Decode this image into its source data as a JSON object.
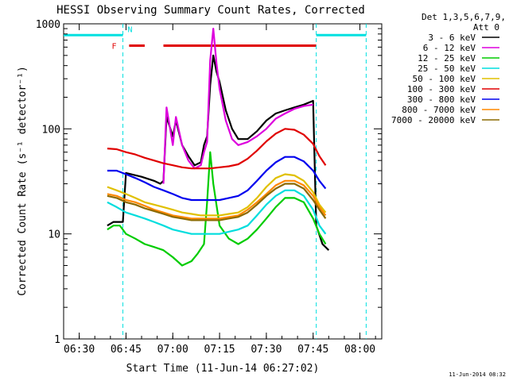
{
  "chart_data": {
    "type": "line",
    "title": "HESSI Observing Summary Count Rates, Corrected",
    "xlabel": "Start Time (11-Jun-14 06:27:02)",
    "ylabel": "Corrected Count Rate (s⁻¹ detector⁻¹)",
    "y_scale": "log",
    "ylim": [
      1,
      1000
    ],
    "xlim": [
      "06:25",
      "08:07"
    ],
    "x_ticks": [
      "06:30",
      "06:45",
      "07:00",
      "07:15",
      "07:30",
      "07:45",
      "08:00"
    ],
    "y_ticks": [
      "1",
      "10",
      "100",
      "1000"
    ],
    "footer_date": "11-Jun-2014 08:32",
    "legend": {
      "header_line1": "Det 1,3,5,6,7,9,",
      "header_line2": "Att 0",
      "placement": "right"
    },
    "flags": {
      "F_label": "F",
      "N_label": "N",
      "F_color": "#e00000",
      "N_color": "#00e0e0",
      "night": [
        [
          "06:25",
          "06:44"
        ],
        [
          "07:46",
          "08:02"
        ]
      ],
      "flare": [
        [
          "06:46",
          "06:51"
        ],
        [
          "06:57",
          "07:46"
        ]
      ],
      "night_boundaries": [
        "06:44",
        "07:46",
        "08:02"
      ]
    },
    "series": [
      {
        "name": "3 - 6 keV",
        "color": "#000000",
        "points": [
          [
            "06:39",
            12
          ],
          [
            "06:41",
            13
          ],
          [
            "06:43",
            13
          ],
          [
            "06:44",
            13
          ],
          [
            "06:45",
            38
          ],
          [
            "06:50",
            35
          ],
          [
            "06:54",
            32
          ],
          [
            "06:56",
            30
          ],
          [
            "06:57",
            32
          ],
          [
            "06:58",
            130
          ],
          [
            "07:00",
            85
          ],
          [
            "07:01",
            120
          ],
          [
            "07:03",
            70
          ],
          [
            "07:05",
            55
          ],
          [
            "07:07",
            45
          ],
          [
            "07:09",
            48
          ],
          [
            "07:10",
            70
          ],
          [
            "07:11",
            85
          ],
          [
            "07:12",
            260
          ],
          [
            "07:13",
            500
          ],
          [
            "07:14",
            350
          ],
          [
            "07:15",
            280
          ],
          [
            "07:17",
            150
          ],
          [
            "07:19",
            100
          ],
          [
            "07:21",
            80
          ],
          [
            "07:24",
            80
          ],
          [
            "07:27",
            95
          ],
          [
            "07:30",
            120
          ],
          [
            "07:33",
            140
          ],
          [
            "07:36",
            150
          ],
          [
            "07:39",
            160
          ],
          [
            "07:42",
            170
          ],
          [
            "07:45",
            185
          ],
          [
            "07:46",
            12
          ],
          [
            "07:48",
            8
          ],
          [
            "07:50",
            7
          ]
        ]
      },
      {
        "name": "6 - 12 keV",
        "color": "#dd00dd",
        "points": [
          [
            "06:57",
            30
          ],
          [
            "06:58",
            160
          ],
          [
            "07:00",
            70
          ],
          [
            "07:01",
            130
          ],
          [
            "07:03",
            70
          ],
          [
            "07:05",
            50
          ],
          [
            "07:07",
            42
          ],
          [
            "07:09",
            45
          ],
          [
            "07:10",
            60
          ],
          [
            "07:11",
            75
          ],
          [
            "07:12",
            450
          ],
          [
            "07:13",
            900
          ],
          [
            "07:14",
            420
          ],
          [
            "07:15",
            240
          ],
          [
            "07:17",
            120
          ],
          [
            "07:19",
            80
          ],
          [
            "07:21",
            70
          ],
          [
            "07:24",
            75
          ],
          [
            "07:27",
            85
          ],
          [
            "07:30",
            100
          ],
          [
            "07:33",
            125
          ],
          [
            "07:36",
            140
          ],
          [
            "07:39",
            155
          ],
          [
            "07:42",
            165
          ],
          [
            "07:45",
            170
          ]
        ]
      },
      {
        "name": "12 - 25 keV",
        "color": "#00cc00",
        "points": [
          [
            "06:39",
            11
          ],
          [
            "06:41",
            12
          ],
          [
            "06:43",
            12
          ],
          [
            "06:44",
            11
          ],
          [
            "06:45",
            10
          ],
          [
            "06:48",
            9
          ],
          [
            "06:51",
            8
          ],
          [
            "06:54",
            7.5
          ],
          [
            "06:57",
            7
          ],
          [
            "07:00",
            6
          ],
          [
            "07:03",
            5
          ],
          [
            "07:06",
            5.5
          ],
          [
            "07:08",
            6.5
          ],
          [
            "07:10",
            8
          ],
          [
            "07:11",
            20
          ],
          [
            "07:12",
            60
          ],
          [
            "07:13",
            30
          ],
          [
            "07:15",
            12
          ],
          [
            "07:18",
            9
          ],
          [
            "07:21",
            8
          ],
          [
            "07:24",
            9
          ],
          [
            "07:27",
            11
          ],
          [
            "07:30",
            14
          ],
          [
            "07:33",
            18
          ],
          [
            "07:36",
            22
          ],
          [
            "07:39",
            22
          ],
          [
            "07:42",
            20
          ],
          [
            "07:45",
            14
          ],
          [
            "07:47",
            10
          ],
          [
            "07:49",
            8
          ]
        ]
      },
      {
        "name": "25 - 50 keV",
        "color": "#00dddd",
        "points": [
          [
            "06:39",
            20
          ],
          [
            "06:42",
            18
          ],
          [
            "06:45",
            16
          ],
          [
            "06:48",
            15
          ],
          [
            "06:51",
            14
          ],
          [
            "06:54",
            13
          ],
          [
            "06:57",
            12
          ],
          [
            "07:00",
            11
          ],
          [
            "07:03",
            10.5
          ],
          [
            "07:06",
            10
          ],
          [
            "07:09",
            10
          ],
          [
            "07:12",
            10
          ],
          [
            "07:15",
            10
          ],
          [
            "07:18",
            10.5
          ],
          [
            "07:21",
            11
          ],
          [
            "07:24",
            12
          ],
          [
            "07:27",
            15
          ],
          [
            "07:30",
            19
          ],
          [
            "07:33",
            23
          ],
          [
            "07:36",
            26
          ],
          [
            "07:39",
            26
          ],
          [
            "07:42",
            23
          ],
          [
            "07:45",
            17
          ],
          [
            "07:47",
            12
          ],
          [
            "07:49",
            10
          ]
        ]
      },
      {
        "name": "50 - 100 keV",
        "color": "#e0c000",
        "points": [
          [
            "06:39",
            28
          ],
          [
            "06:42",
            26
          ],
          [
            "06:45",
            24
          ],
          [
            "06:48",
            22
          ],
          [
            "06:51",
            20
          ],
          [
            "06:54",
            19
          ],
          [
            "06:57",
            18
          ],
          [
            "07:00",
            17
          ],
          [
            "07:03",
            16
          ],
          [
            "07:06",
            15.5
          ],
          [
            "07:09",
            15
          ],
          [
            "07:12",
            15
          ],
          [
            "07:15",
            15
          ],
          [
            "07:18",
            15.5
          ],
          [
            "07:21",
            16
          ],
          [
            "07:24",
            18
          ],
          [
            "07:27",
            22
          ],
          [
            "07:30",
            28
          ],
          [
            "07:33",
            34
          ],
          [
            "07:36",
            37
          ],
          [
            "07:39",
            36
          ],
          [
            "07:42",
            32
          ],
          [
            "07:45",
            25
          ],
          [
            "07:47",
            19
          ],
          [
            "07:49",
            16
          ]
        ]
      },
      {
        "name": "100 - 300 keV",
        "color": "#e00000",
        "points": [
          [
            "06:39",
            65
          ],
          [
            "06:42",
            64
          ],
          [
            "06:45",
            60
          ],
          [
            "06:48",
            57
          ],
          [
            "06:51",
            53
          ],
          [
            "06:54",
            50
          ],
          [
            "06:57",
            47
          ],
          [
            "07:00",
            45
          ],
          [
            "07:03",
            43
          ],
          [
            "07:06",
            42
          ],
          [
            "07:09",
            42
          ],
          [
            "07:12",
            42
          ],
          [
            "07:15",
            43
          ],
          [
            "07:18",
            44
          ],
          [
            "07:21",
            46
          ],
          [
            "07:24",
            52
          ],
          [
            "07:27",
            62
          ],
          [
            "07:30",
            76
          ],
          [
            "07:33",
            90
          ],
          [
            "07:36",
            100
          ],
          [
            "07:39",
            98
          ],
          [
            "07:42",
            88
          ],
          [
            "07:45",
            72
          ],
          [
            "07:47",
            55
          ],
          [
            "07:49",
            45
          ]
        ]
      },
      {
        "name": "300 - 800 keV",
        "color": "#0000ee",
        "points": [
          [
            "06:39",
            40
          ],
          [
            "06:42",
            40
          ],
          [
            "06:45",
            37
          ],
          [
            "06:48",
            34
          ],
          [
            "06:51",
            31
          ],
          [
            "06:54",
            28
          ],
          [
            "06:57",
            26
          ],
          [
            "07:00",
            24
          ],
          [
            "07:03",
            22
          ],
          [
            "07:06",
            21
          ],
          [
            "07:09",
            21
          ],
          [
            "07:12",
            21
          ],
          [
            "07:15",
            21
          ],
          [
            "07:18",
            22
          ],
          [
            "07:21",
            23
          ],
          [
            "07:24",
            26
          ],
          [
            "07:27",
            32
          ],
          [
            "07:30",
            40
          ],
          [
            "07:33",
            48
          ],
          [
            "07:36",
            54
          ],
          [
            "07:39",
            54
          ],
          [
            "07:42",
            49
          ],
          [
            "07:45",
            40
          ],
          [
            "07:47",
            32
          ],
          [
            "07:49",
            27
          ]
        ]
      },
      {
        "name": "800 - 7000 keV",
        "color": "#ff8800",
        "points": [
          [
            "06:39",
            24
          ],
          [
            "06:42",
            23
          ],
          [
            "06:45",
            21
          ],
          [
            "06:48",
            20
          ],
          [
            "06:51",
            18.5
          ],
          [
            "06:54",
            17
          ],
          [
            "06:57",
            16
          ],
          [
            "07:00",
            15
          ],
          [
            "07:03",
            14.5
          ],
          [
            "07:06",
            14
          ],
          [
            "07:09",
            14
          ],
          [
            "07:12",
            14
          ],
          [
            "07:15",
            14
          ],
          [
            "07:18",
            14.5
          ],
          [
            "07:21",
            15
          ],
          [
            "07:24",
            17
          ],
          [
            "07:27",
            20
          ],
          [
            "07:30",
            24
          ],
          [
            "07:33",
            29
          ],
          [
            "07:36",
            32
          ],
          [
            "07:39",
            32
          ],
          [
            "07:42",
            29
          ],
          [
            "07:45",
            23
          ],
          [
            "07:47",
            18
          ],
          [
            "07:49",
            15
          ]
        ]
      },
      {
        "name": "7000 - 20000 keV",
        "color": "#8b6a00",
        "points": [
          [
            "06:39",
            23
          ],
          [
            "06:42",
            22
          ],
          [
            "06:45",
            20
          ],
          [
            "06:48",
            19
          ],
          [
            "06:51",
            17.5
          ],
          [
            "06:54",
            16.5
          ],
          [
            "06:57",
            15.5
          ],
          [
            "07:00",
            14.5
          ],
          [
            "07:03",
            14
          ],
          [
            "07:06",
            13.5
          ],
          [
            "07:09",
            13.5
          ],
          [
            "07:12",
            13.5
          ],
          [
            "07:15",
            13.5
          ],
          [
            "07:18",
            14
          ],
          [
            "07:21",
            14.5
          ],
          [
            "07:24",
            16
          ],
          [
            "07:27",
            19
          ],
          [
            "07:30",
            23
          ],
          [
            "07:33",
            27
          ],
          [
            "07:36",
            30
          ],
          [
            "07:39",
            30
          ],
          [
            "07:42",
            27
          ],
          [
            "07:45",
            21
          ],
          [
            "07:47",
            17
          ],
          [
            "07:49",
            14
          ]
        ]
      }
    ]
  }
}
